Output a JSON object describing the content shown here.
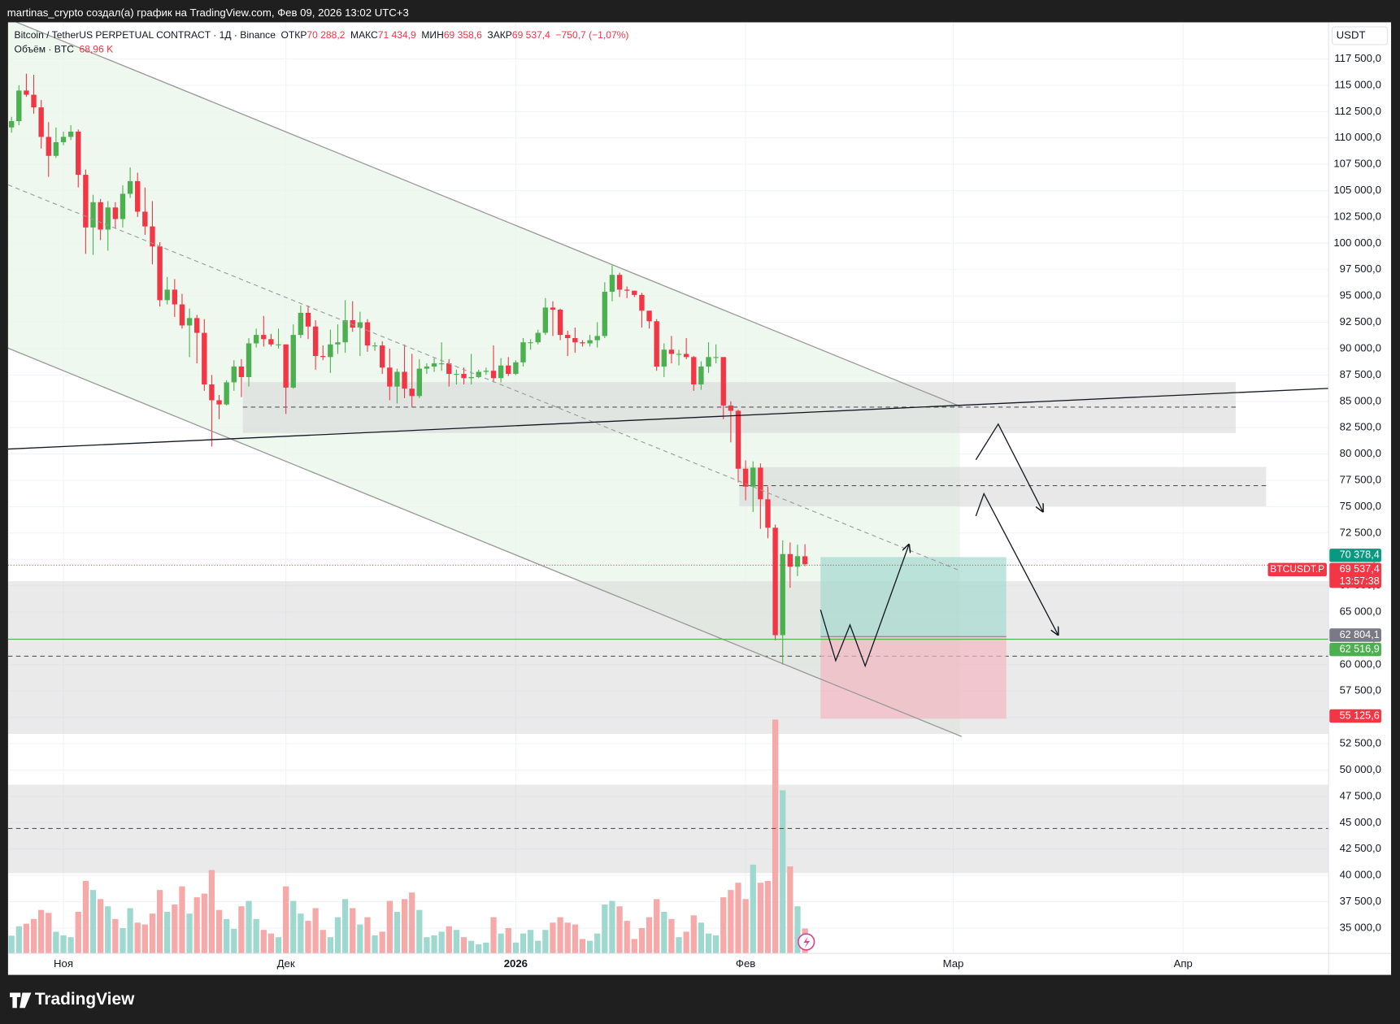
{
  "header": "martinas_crypto создал(а) график на TradingView.com, Фев 09, 2026 13:02 UTC+3",
  "footer_logo": "TradingView",
  "chart_data": {
    "type": "candlestick",
    "title": "Bitcoin / TetherUS PERPETUAL CONTRACT · 1Д · Binance",
    "ohlc_legend": [
      {
        "label": "ОТКР",
        "value": "70 288,2"
      },
      {
        "label": "МАКС",
        "value": "71 434,9"
      },
      {
        "label": "МИН",
        "value": "69 358,6"
      },
      {
        "label": "ЗАКР",
        "value": "69 537,4"
      }
    ],
    "change_label": "−750,7 (−1,07%)",
    "volume_title": "Объём · BTC",
    "volume_label": "68,96 K",
    "currency": "USDT",
    "categories": [
      null,
      null,
      null,
      null,
      null,
      null,
      null,
      "Ноя",
      null,
      null,
      null,
      null,
      null,
      null,
      null,
      null,
      null,
      null,
      null,
      null,
      null,
      null,
      null,
      null,
      null,
      null,
      null,
      null,
      null,
      null,
      null,
      null,
      null,
      null,
      null,
      null,
      null,
      "Дек",
      null,
      null,
      null,
      null,
      null,
      null,
      null,
      null,
      null,
      null,
      null,
      null,
      null,
      null,
      null,
      null,
      null,
      null,
      null,
      null,
      null,
      null,
      null,
      null,
      null,
      null,
      null,
      null,
      null,
      null,
      "2026",
      null,
      null,
      null,
      null,
      null,
      null,
      null,
      null,
      null,
      null,
      null,
      null,
      null,
      null,
      null,
      null,
      null,
      null,
      null,
      null,
      null,
      null,
      null,
      null,
      null,
      null,
      null,
      null,
      null,
      null,
      "Фев",
      null,
      null,
      null,
      null,
      null,
      null,
      null,
      null,
      null,
      null,
      null,
      null,
      null,
      null,
      null,
      null,
      null,
      null,
      null,
      null,
      null,
      null,
      null,
      null,
      null,
      null,
      null,
      "Мар",
      null,
      null,
      null,
      null,
      null,
      null,
      null,
      null,
      null,
      null,
      null,
      null,
      null,
      null,
      null,
      null,
      null,
      null,
      null,
      null,
      null,
      null,
      null,
      null,
      null,
      null,
      null,
      null,
      null,
      null,
      "Апр",
      null,
      null,
      null,
      null,
      null,
      null,
      null,
      null,
      null,
      null,
      null,
      null,
      null,
      null,
      null,
      null,
      null,
      null,
      null
    ],
    "open": [
      111000,
      111600,
      114500,
      114100,
      112900,
      110100,
      108300,
      109600,
      110100,
      110600,
      106500,
      101500,
      103900,
      101300,
      103400,
      102300,
      104700,
      105900,
      103000,
      101600,
      99700,
      94600,
      95600,
      94200,
      92200,
      92900,
      91500,
      86600,
      85100,
      84700,
      86800,
      88300,
      87300,
      90500,
      91300,
      90900,
      90400,
      90400,
      86300,
      91300,
      93400,
      92100,
      89300,
      89200,
      90400,
      90600,
      92700,
      92000,
      92500,
      90300,
      90300,
      88200,
      86400,
      87800,
      86200,
      85500,
      88100,
      88300,
      88600,
      88600,
      87600,
      87600,
      87200,
      87300,
      87800,
      87900,
      87200,
      88400,
      87600,
      88700,
      90600,
      90600,
      91500,
      93900,
      93700,
      91300,
      91000,
      90600,
      90500,
      90800,
      91200,
      95400,
      97000,
      95600,
      95500,
      95100,
      93600,
      92600,
      88300,
      89900,
      89500,
      89500,
      89200,
      86600,
      88300,
      89200,
      89200,
      84600,
      84100,
      78600,
      76900,
      78700,
      75700,
      73000,
      62800,
      70500,
      69300,
      70288.2,
      null,
      null,
      null,
      null,
      null,
      null,
      null,
      null,
      null,
      null,
      null,
      null,
      null,
      null,
      null,
      null,
      null,
      null,
      null,
      null,
      null,
      null,
      null,
      null,
      null,
      null,
      null,
      null,
      null,
      null,
      null,
      null,
      null,
      null,
      null,
      null,
      null,
      null,
      null,
      null,
      null,
      null,
      null,
      null,
      null,
      null,
      null,
      null,
      null,
      null,
      null,
      null,
      null,
      null,
      null,
      null,
      null,
      null,
      null,
      null,
      null,
      null,
      null,
      null,
      null,
      null,
      null,
      null,
      null,
      null
    ],
    "high": [
      112000,
      115000,
      116100,
      116000,
      113600,
      111500,
      111000,
      110600,
      111200,
      110800,
      107000,
      104600,
      104200,
      104000,
      103900,
      105500,
      107200,
      106700,
      105300,
      104000,
      100100,
      96800,
      96600,
      95200,
      93800,
      93200,
      92800,
      87500,
      85600,
      87000,
      88900,
      89000,
      91000,
      91900,
      93100,
      91400,
      91900,
      90400,
      92300,
      94100,
      94100,
      92700,
      90300,
      91800,
      92300,
      94600,
      94500,
      93500,
      92800,
      90600,
      90700,
      90000,
      88100,
      90400,
      89500,
      89000,
      88600,
      89100,
      90600,
      89000,
      88000,
      88200,
      89500,
      88000,
      88200,
      90300,
      89100,
      89200,
      88900,
      91000,
      90900,
      91800,
      94800,
      94500,
      93800,
      91700,
      92000,
      90800,
      91300,
      92500,
      96300,
      97900,
      97200,
      95900,
      95500,
      95300,
      93600,
      92800,
      90500,
      91200,
      89900,
      91000,
      89300,
      88800,
      90600,
      90400,
      89200,
      85000,
      84200,
      79400,
      79300,
      79100,
      76900,
      73300,
      71800,
      71600,
      71400,
      71434.9,
      null,
      null,
      null,
      null,
      null,
      null,
      null,
      null,
      null,
      null,
      null,
      null,
      null,
      null,
      null,
      null,
      null,
      null,
      null,
      null,
      null,
      null,
      null,
      null,
      null,
      null,
      null,
      null,
      null,
      null,
      null,
      null,
      null,
      null,
      null,
      null,
      null,
      null,
      null,
      null,
      null,
      null,
      null,
      null,
      null,
      null,
      null,
      null,
      null,
      null,
      null,
      null,
      null,
      null,
      null,
      null,
      null,
      null,
      null,
      null,
      null,
      null,
      null,
      null,
      null,
      null,
      null,
      null,
      null,
      null
    ],
    "low": [
      110500,
      111200,
      113900,
      112300,
      109000,
      106300,
      108100,
      109300,
      109800,
      105300,
      99000,
      98900,
      100300,
      99300,
      101400,
      101500,
      104300,
      102500,
      100800,
      98000,
      94000,
      94200,
      93000,
      91900,
      89200,
      88600,
      86000,
      80700,
      83300,
      84600,
      86000,
      85400,
      86400,
      90100,
      90200,
      90200,
      90000,
      83800,
      86200,
      91000,
      90900,
      88000,
      88900,
      87700,
      89500,
      89600,
      91600,
      89300,
      89700,
      89800,
      87600,
      85100,
      84800,
      85300,
      84500,
      85300,
      87600,
      87800,
      87900,
      86400,
      86600,
      86600,
      86600,
      87200,
      87500,
      86800,
      86800,
      87400,
      87500,
      88300,
      89900,
      90400,
      91300,
      91200,
      90800,
      89300,
      89600,
      90200,
      90200,
      90100,
      91000,
      94500,
      94900,
      94800,
      94900,
      92000,
      91900,
      87900,
      87300,
      88600,
      88400,
      89000,
      86000,
      86100,
      87700,
      88600,
      83300,
      81100,
      77300,
      75600,
      74500,
      72900,
      72000,
      62300,
      60000,
      67300,
      68400,
      69358.6,
      null,
      null,
      null,
      null,
      null,
      null,
      null,
      null,
      null,
      null,
      null,
      null,
      null,
      null,
      null,
      null,
      null,
      null,
      null,
      null,
      null,
      null,
      null,
      null,
      null,
      null,
      null,
      null,
      null,
      null,
      null,
      null,
      null,
      null,
      null,
      null,
      null,
      null,
      null,
      null,
      null,
      null,
      null,
      null,
      null,
      null,
      null,
      null,
      null,
      null,
      null,
      null,
      null,
      null,
      null,
      null,
      null,
      null,
      null,
      null,
      null,
      null,
      null,
      null,
      null,
      null,
      null,
      null,
      null,
      null
    ],
    "close": [
      111600,
      114500,
      114100,
      112900,
      110100,
      108300,
      109600,
      110100,
      110600,
      106500,
      101500,
      103900,
      101300,
      103400,
      102300,
      104700,
      105900,
      103000,
      101600,
      99700,
      94600,
      95600,
      94200,
      92200,
      92900,
      91500,
      86600,
      85100,
      84700,
      86800,
      88300,
      87300,
      90500,
      91300,
      90900,
      90400,
      90400,
      86300,
      91300,
      93400,
      92100,
      89300,
      89200,
      90400,
      90600,
      92700,
      92000,
      92500,
      90300,
      90300,
      88200,
      86400,
      87800,
      86200,
      85500,
      88100,
      88300,
      88600,
      88600,
      87600,
      87600,
      87200,
      87300,
      87800,
      87900,
      87200,
      88400,
      87600,
      88700,
      90600,
      90600,
      91500,
      93900,
      93700,
      91300,
      91000,
      90600,
      90500,
      90800,
      91200,
      95400,
      97000,
      95600,
      95500,
      95100,
      93600,
      92600,
      88300,
      89900,
      89500,
      89500,
      89200,
      86600,
      88300,
      89200,
      89200,
      84600,
      84100,
      78600,
      76900,
      78700,
      75700,
      73000,
      62800,
      70500,
      69300,
      70300,
      69537.4,
      null,
      null,
      null,
      null,
      null,
      null,
      null,
      null,
      null,
      null,
      null,
      null,
      null,
      null,
      null,
      null,
      null,
      null,
      null,
      null,
      null,
      null,
      null,
      null,
      null,
      null,
      null,
      null,
      null,
      null,
      null,
      null,
      null,
      null,
      null,
      null,
      null,
      null,
      null,
      null,
      null,
      null,
      null,
      null,
      null,
      null,
      null,
      null,
      null,
      null,
      null,
      null,
      null,
      null,
      null,
      null,
      null,
      null,
      null,
      null,
      null,
      null,
      null,
      null,
      null,
      null,
      null,
      null,
      null,
      null
    ],
    "volume": [
      49000,
      75000,
      82000,
      95000,
      120000,
      112000,
      60000,
      50000,
      45000,
      115000,
      200000,
      175000,
      150000,
      130000,
      95000,
      70000,
      125000,
      85000,
      80000,
      110000,
      175000,
      115000,
      135000,
      185000,
      110000,
      155000,
      165000,
      230000,
      120000,
      95000,
      68000,
      130000,
      145000,
      95000,
      65000,
      55000,
      45000,
      185000,
      145000,
      110000,
      90000,
      125000,
      65000,
      45000,
      100000,
      150000,
      125000,
      80000,
      100000,
      50000,
      60000,
      145000,
      115000,
      150000,
      168000,
      120000,
      45000,
      50000,
      60000,
      75000,
      65000,
      45000,
      35000,
      25000,
      30000,
      100000,
      55000,
      70000,
      30000,
      55000,
      65000,
      35000,
      65000,
      85000,
      100000,
      85000,
      80000,
      40000,
      35000,
      55000,
      135000,
      145000,
      130000,
      90000,
      40000,
      70000,
      100000,
      150000,
      115000,
      95000,
      45000,
      60000,
      105000,
      85000,
      55000,
      50000,
      155000,
      175000,
      195000,
      150000,
      245000,
      195000,
      200000,
      645000,
      450000,
      240000,
      130000,
      68960,
      null,
      null,
      null,
      null,
      null,
      null,
      null,
      null,
      null,
      null,
      null,
      null,
      null,
      null,
      null,
      null,
      null,
      null,
      null,
      null,
      null,
      null,
      null,
      null,
      null,
      null,
      null,
      null,
      null,
      null,
      null,
      null,
      null,
      null,
      null,
      null,
      null,
      null,
      null,
      null,
      null,
      null,
      null,
      null,
      null,
      null,
      null,
      null,
      null,
      null,
      null,
      null,
      null,
      null,
      null,
      null,
      null,
      null,
      null,
      null,
      null,
      null,
      null,
      null,
      null,
      null,
      null,
      null,
      null,
      null
    ],
    "up_color": "#4caf50",
    "down_color": "#f23645",
    "volume_up_color": "#9fd8cf",
    "volume_down_color": "#f5a9a9",
    "ylim": [
      32585,
      120975
    ],
    "yticks": [
      {
        "value": 35000,
        "label": "35 000,0"
      },
      {
        "value": 37500,
        "label": "37 500,0"
      },
      {
        "value": 40000,
        "label": "40 000,0"
      },
      {
        "value": 42500,
        "label": "42 500,0"
      },
      {
        "value": 45000,
        "label": "45 000,0"
      },
      {
        "value": 47500,
        "label": "47 500,0"
      },
      {
        "value": 50000,
        "label": "50 000,0"
      },
      {
        "value": 52500,
        "label": "52 500,0"
      },
      {
        "value": 55000,
        "label": "55 000,0"
      },
      {
        "value": 57500,
        "label": "57 500,0"
      },
      {
        "value": 60000,
        "label": "60 000,0"
      },
      {
        "value": 62500,
        "label": "62 500,0"
      },
      {
        "value": 65000,
        "label": "65 000,0"
      },
      {
        "value": 67500,
        "label": "67 500,0"
      },
      {
        "value": 70000,
        "label": "70 000,0"
      },
      {
        "value": 72500,
        "label": "72 500,0"
      },
      {
        "value": 75000,
        "label": "75 000,0"
      },
      {
        "value": 77500,
        "label": "77 500,0"
      },
      {
        "value": 80000,
        "label": "80 000,0"
      },
      {
        "value": 82500,
        "label": "82 500,0"
      },
      {
        "value": 85000,
        "label": "85 000,0"
      },
      {
        "value": 87500,
        "label": "87 500,0"
      },
      {
        "value": 90000,
        "label": "90 000,0"
      },
      {
        "value": 92500,
        "label": "92 500,0"
      },
      {
        "value": 95000,
        "label": "95 000,0"
      },
      {
        "value": 97500,
        "label": "97 500,0"
      },
      {
        "value": 100000,
        "label": "100 000,0"
      },
      {
        "value": 102500,
        "label": "102 500,0"
      },
      {
        "value": 105000,
        "label": "105 000,0"
      },
      {
        "value": 107500,
        "label": "107 500,0"
      },
      {
        "value": 110000,
        "label": "110 000,0"
      },
      {
        "value": 112500,
        "label": "112 500,0"
      },
      {
        "value": 115000,
        "label": "115 000,0"
      },
      {
        "value": 117500,
        "label": "117 500,0"
      }
    ],
    "price_tags": [
      {
        "value": 70378.4,
        "label": "70 378,4",
        "color": "#089981"
      },
      {
        "value": 69537.4,
        "label": "69 537,4",
        "color": "#f23645",
        "sub_label": "13:57:38",
        "side_label": "BTCUSDT.P"
      },
      {
        "value": 62804.1,
        "label": "62 804,1",
        "color": "#787b86"
      },
      {
        "value": 62516.9,
        "label": "62 516,9",
        "color": "#4caf50"
      },
      {
        "value": 55125.6,
        "label": "55 125,6",
        "color": "#f23645"
      }
    ],
    "grid": true
  }
}
